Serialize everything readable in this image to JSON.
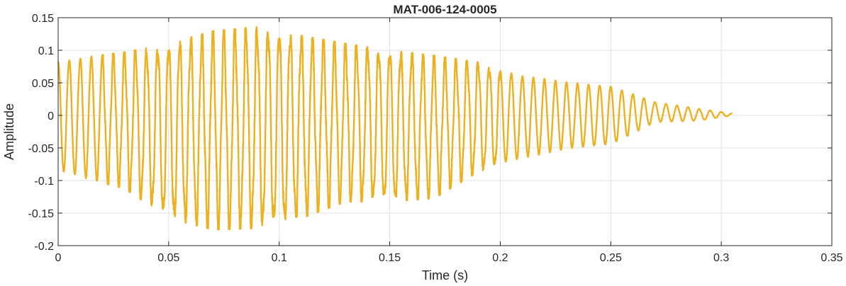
{
  "chart_data": {
    "type": "line",
    "title": "MAT-006-124-0005",
    "xlabel": "Time (s)",
    "ylabel": "Amplitude",
    "xlim": [
      0,
      0.35
    ],
    "ylim": [
      -0.2,
      0.15
    ],
    "xticks": [
      0,
      0.05,
      0.1,
      0.15,
      0.2,
      0.25,
      0.3,
      0.35
    ],
    "xtick_labels": [
      "0",
      "0.05",
      "0.1",
      "0.15",
      "0.2",
      "0.25",
      "0.3",
      "0.35"
    ],
    "yticks": [
      -0.2,
      -0.15,
      -0.1,
      -0.05,
      0,
      0.05,
      0.1,
      0.15
    ],
    "ytick_labels": [
      "-0.2",
      "-0.15",
      "-0.1",
      "-0.05",
      "0",
      "0.05",
      "0.1",
      "0.15"
    ],
    "grid": true,
    "series": [
      {
        "color": "#EDB120",
        "signal": {
          "t_start": 0,
          "t_end": 0.305,
          "oscillation_period": 0.005,
          "envelope": {
            "t": [
              0,
              0.03,
              0.05,
              0.07,
              0.09,
              0.11,
              0.13,
              0.15,
              0.17,
              0.19,
              0.21,
              0.23,
              0.25,
              0.27,
              0.29,
              0.305
            ],
            "upper": [
              0.083,
              0.095,
              0.108,
              0.127,
              0.133,
              0.12,
              0.108,
              0.098,
              0.09,
              0.08,
              0.06,
              0.05,
              0.045,
              0.02,
              0.01,
              0.003
            ],
            "lower": [
              -0.085,
              -0.11,
              -0.155,
              -0.172,
              -0.17,
              -0.155,
              -0.13,
              -0.13,
              -0.125,
              -0.085,
              -0.065,
              -0.05,
              -0.045,
              -0.01,
              -0.008,
              0
            ]
          }
        }
      }
    ]
  }
}
